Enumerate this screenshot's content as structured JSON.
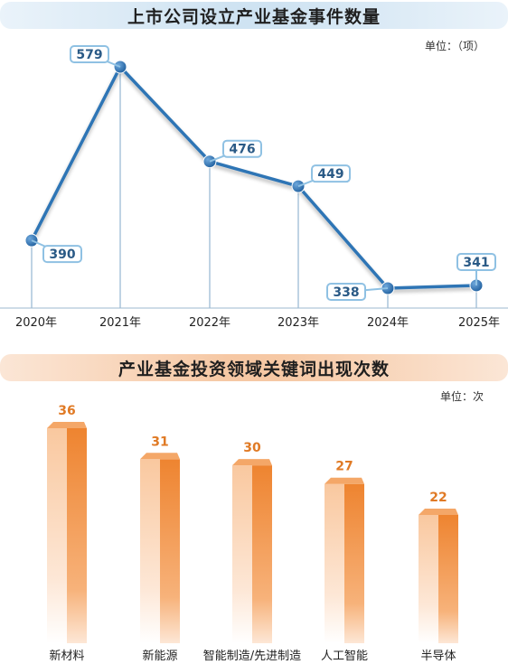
{
  "chart_data": [
    {
      "type": "line",
      "title": "上市公司设立产业基金事件数量",
      "unit": "单位：（项）",
      "categories": [
        "2020年",
        "2021年",
        "2022年",
        "2023年",
        "2024年",
        "2025年"
      ],
      "values": [
        390,
        579,
        476,
        449,
        338,
        341
      ],
      "ylim": [
        300,
        600
      ],
      "color": "#2f75b5"
    },
    {
      "type": "bar",
      "title": "产业基金投资领域关键词出现次数",
      "unit": "单位：次",
      "categories": [
        "新材料",
        "新能源",
        "智能制造/先进制造",
        "人工智能",
        "半导体"
      ],
      "values": [
        36,
        31,
        30,
        27,
        22
      ],
      "ylim": [
        0,
        40
      ],
      "color": "#f08a32"
    }
  ]
}
